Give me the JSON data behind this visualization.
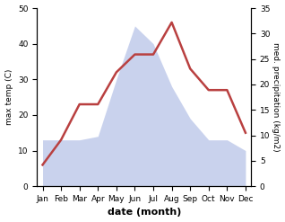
{
  "months": [
    "Jan",
    "Feb",
    "Mar",
    "Apr",
    "May",
    "Jun",
    "Jul",
    "Aug",
    "Sep",
    "Oct",
    "Nov",
    "Dec"
  ],
  "temperature": [
    6,
    13,
    23,
    23,
    32,
    37,
    37,
    46,
    33,
    27,
    27,
    15
  ],
  "precipitation_left_scale": [
    13,
    13,
    13,
    14,
    30,
    45,
    40,
    28,
    19,
    13,
    13,
    10
  ],
  "temp_ylim": [
    0,
    50
  ],
  "precip_ylim": [
    0,
    35
  ],
  "temp_color": "#b94040",
  "precip_color_fill": "#b8c4e8",
  "background_color": "#ffffff",
  "xlabel": "date (month)",
  "ylabel_left": "max temp (C)",
  "ylabel_right": "med. precipitation (kg/m2)",
  "line_width": 1.8,
  "tick_fontsize": 6.5,
  "label_fontsize": 7.5,
  "xlabel_fontsize": 8,
  "xlabel_fontweight": "bold"
}
